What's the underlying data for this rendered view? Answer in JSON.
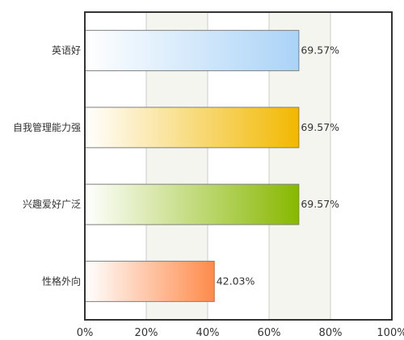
{
  "chart_data": {
    "type": "bar",
    "orientation": "horizontal",
    "categories": [
      "英语好",
      "自我管理能力强",
      "兴趣爱好广泛",
      "性格外向"
    ],
    "values": [
      69.57,
      69.57,
      69.57,
      42.03
    ],
    "value_labels": [
      "69.57%",
      "69.57%",
      "69.57%",
      "42.03%"
    ],
    "xlim": [
      0,
      100
    ],
    "x_ticks": [
      0,
      20,
      40,
      60,
      80,
      100
    ],
    "x_tick_labels": [
      "0%",
      "20%",
      "40%",
      "60%",
      "80%",
      "100%"
    ],
    "grid": true,
    "legend": "none",
    "bar_colors": [
      {
        "start": "#ffffff",
        "end": "#aad3f7"
      },
      {
        "start": "#ffffff",
        "end": "#f2b800"
      },
      {
        "start": "#ffffff",
        "end": "#88b800"
      },
      {
        "start": "#ffffff",
        "end": "#ff8a4a"
      }
    ],
    "band_colors": [
      "#ffffff",
      "#f5f5f0"
    ]
  }
}
